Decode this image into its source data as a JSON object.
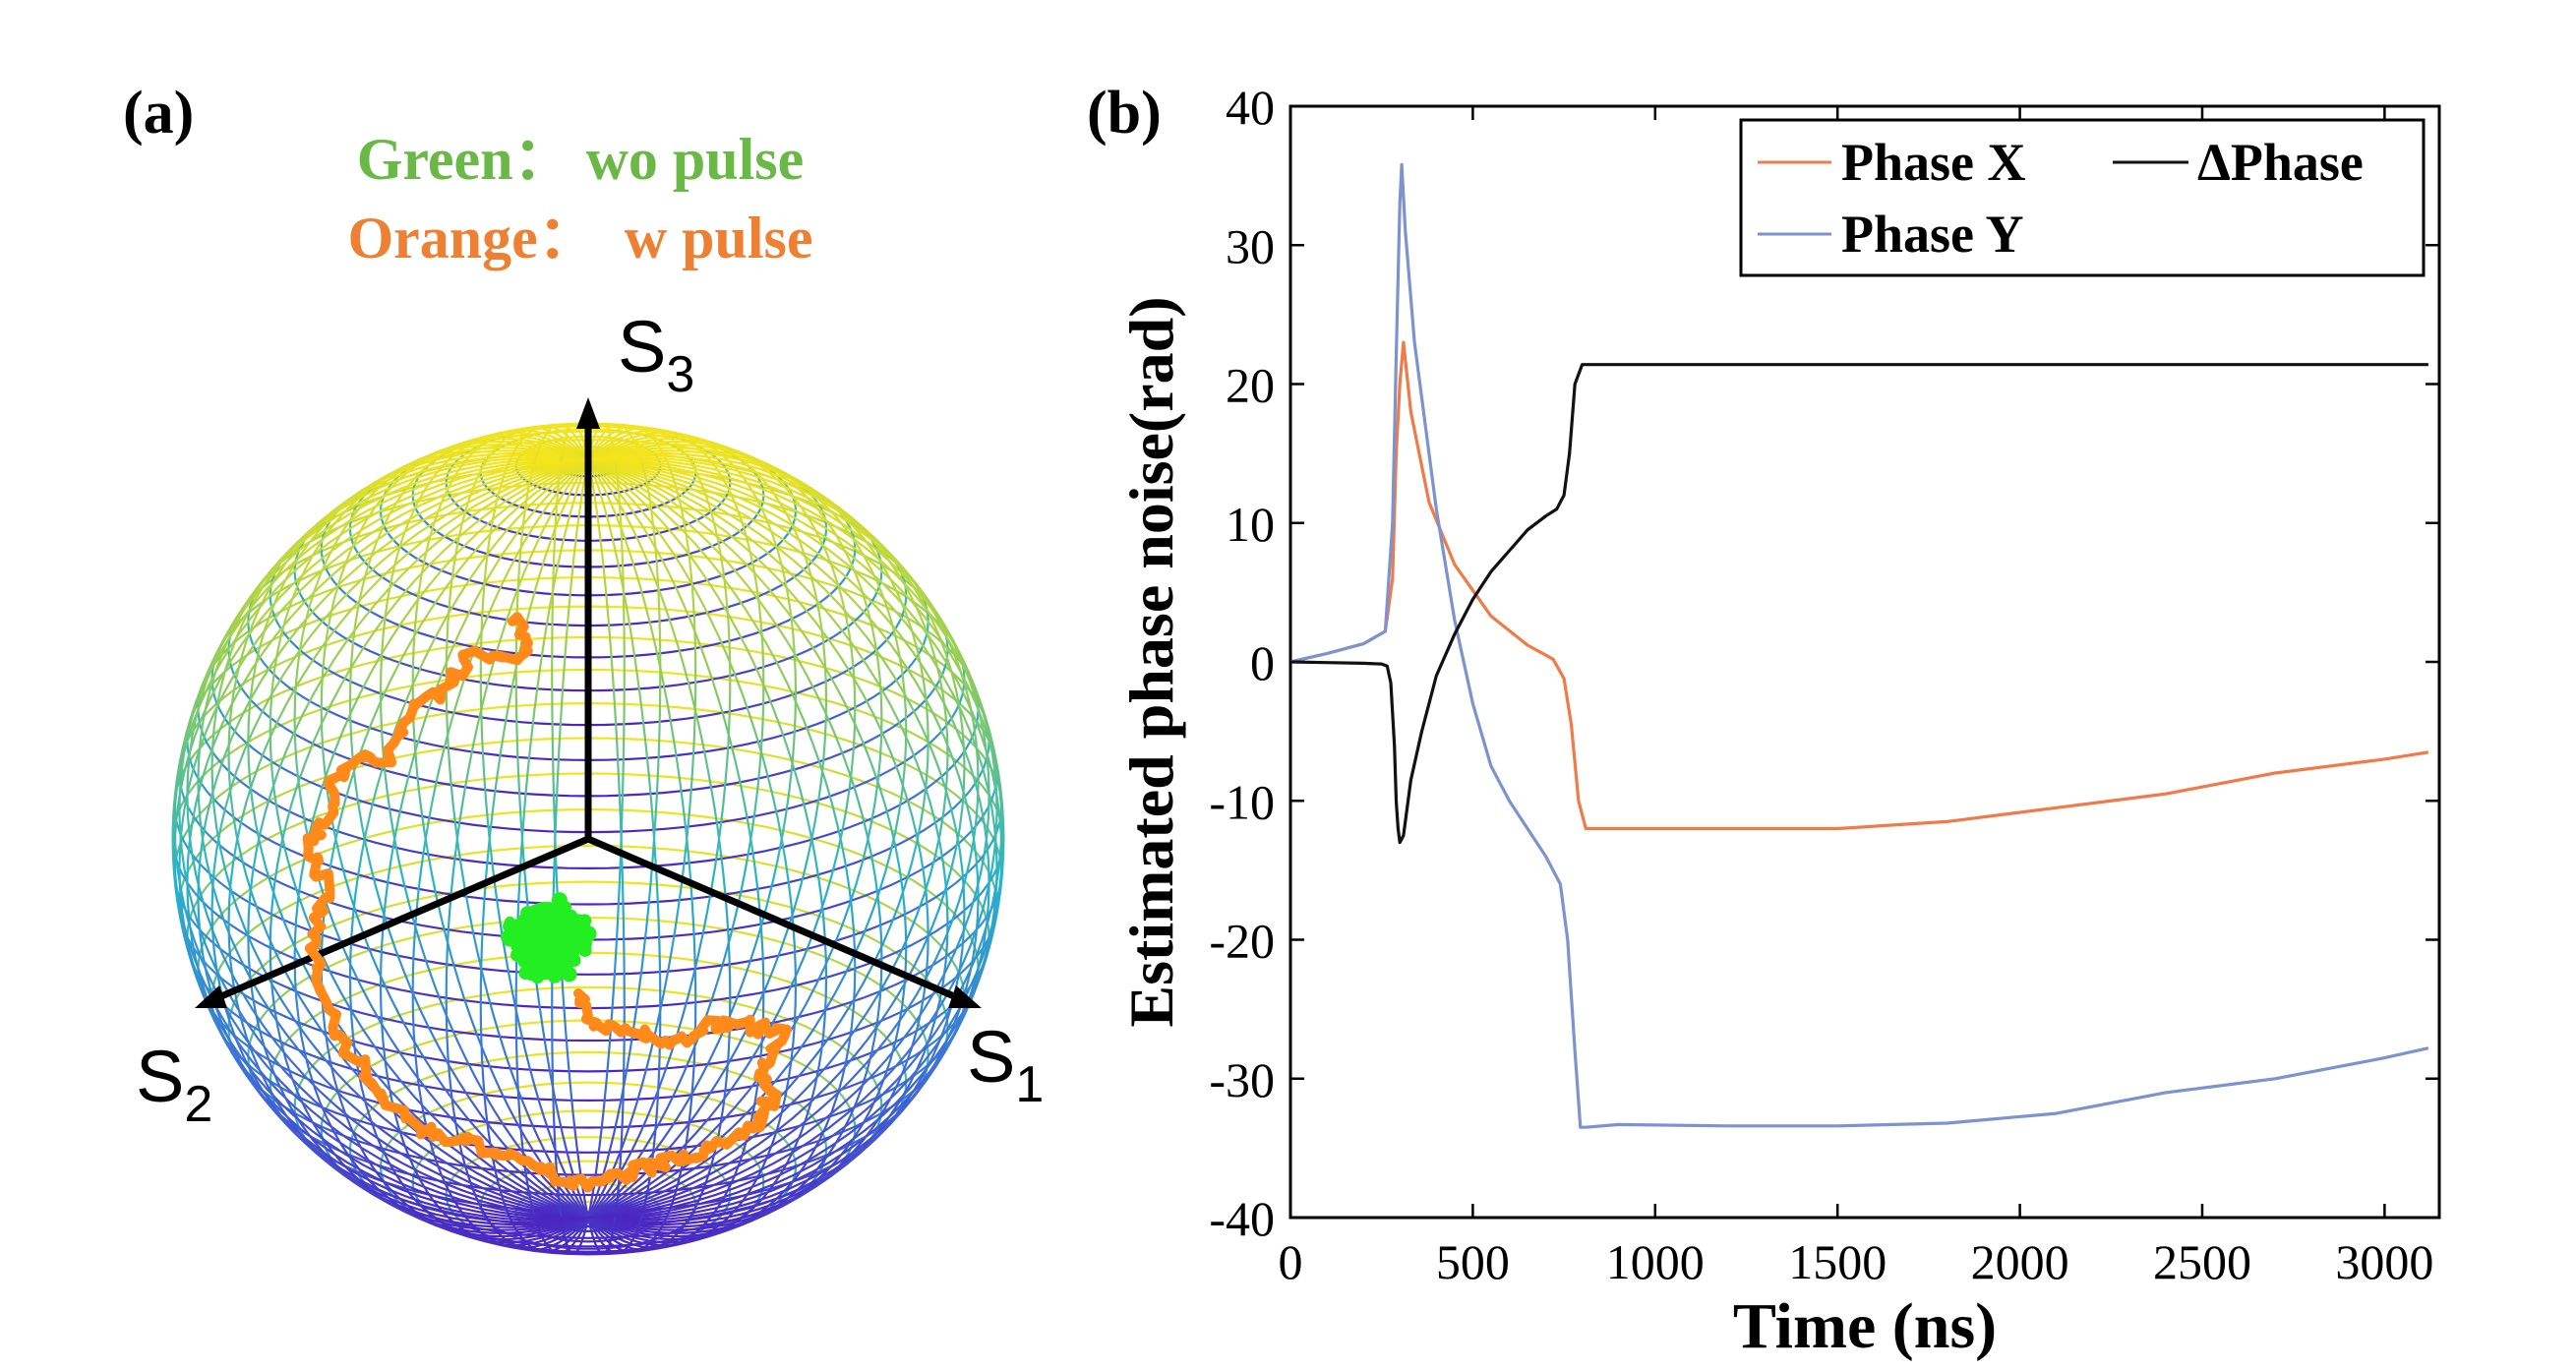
{
  "panel_a": {
    "label": "(a)",
    "legend": [
      {
        "name": "Green",
        "separator": "：",
        "desc": "wo pulse",
        "color": "#6ab845"
      },
      {
        "name": "Orange",
        "separator": "：",
        "desc": "w pulse",
        "color": "#ee8033"
      }
    ],
    "axes": [
      {
        "base": "S",
        "sub": "3"
      },
      {
        "base": "S",
        "sub": "2"
      },
      {
        "base": "S",
        "sub": "1"
      }
    ],
    "trace_colors": {
      "green": "#22ee22",
      "orange": "#ff8a1a"
    }
  },
  "panel_b": {
    "label": "(b)"
  },
  "chart_data": {
    "type": "line",
    "title": "",
    "xlabel": "Time (ns)",
    "ylabel": "Estimated phase noise(rad)",
    "xlim": [
      0,
      3150
    ],
    "ylim": [
      -40,
      40
    ],
    "xticks": [
      0,
      500,
      1000,
      1500,
      2000,
      2500,
      3000
    ],
    "yticks": [
      -40,
      -30,
      -20,
      -10,
      0,
      10,
      20,
      30,
      40
    ],
    "legend_position": "top-right",
    "legend_labels": [
      "Phase X",
      "ΔPhase",
      "Phase Y"
    ],
    "series": [
      {
        "name": "Phase X",
        "color": "#f07a48",
        "x": [
          0,
          100,
          200,
          260,
          280,
          290,
          300,
          310,
          330,
          380,
          450,
          550,
          650,
          720,
          750,
          770,
          790,
          810,
          900,
          1200,
          1500,
          1800,
          2100,
          2400,
          2700,
          3000,
          3120
        ],
        "y": [
          0,
          0.6,
          1.3,
          2.2,
          6,
          15,
          20,
          23,
          18,
          11.5,
          7,
          3.3,
          1.2,
          0.2,
          -1.2,
          -4.5,
          -10,
          -12,
          -12,
          -12,
          -12,
          -11.5,
          -10.5,
          -9.5,
          -8,
          -7,
          -6.5
        ]
      },
      {
        "name": "Phase Y",
        "color": "#7d93cf",
        "x": [
          0,
          100,
          200,
          260,
          280,
          290,
          300,
          305,
          315,
          340,
          400,
          450,
          500,
          550,
          600,
          650,
          700,
          740,
          760,
          780,
          795,
          810,
          900,
          1200,
          1500,
          1800,
          2100,
          2400,
          2700,
          3000,
          3120
        ],
        "y": [
          0,
          0.6,
          1.3,
          2.2,
          10,
          22,
          33,
          35.8,
          31,
          23,
          11,
          3,
          -3,
          -7.5,
          -10,
          -12,
          -14,
          -16,
          -20,
          -28,
          -33.5,
          -33.5,
          -33.3,
          -33.4,
          -33.4,
          -33.2,
          -32.5,
          -31,
          -30,
          -28.5,
          -27.8
        ]
      },
      {
        "name": "ΔPhase",
        "color": "#111111",
        "x": [
          0,
          100,
          200,
          250,
          265,
          275,
          285,
          290,
          295,
          300,
          310,
          330,
          360,
          400,
          450,
          500,
          550,
          600,
          650,
          700,
          730,
          750,
          765,
          780,
          800,
          830,
          900,
          1500,
          2000,
          2500,
          3000,
          3120
        ],
        "y": [
          0,
          -0.05,
          -0.1,
          -0.15,
          -0.3,
          -1.5,
          -6,
          -10,
          -12,
          -13,
          -12.5,
          -8.5,
          -5,
          -1,
          2,
          4.5,
          6.5,
          8,
          9.5,
          10.5,
          11,
          12,
          15,
          20,
          21.4,
          21.4,
          21.4,
          21.4,
          21.4,
          21.4,
          21.4,
          21.4
        ]
      }
    ]
  }
}
